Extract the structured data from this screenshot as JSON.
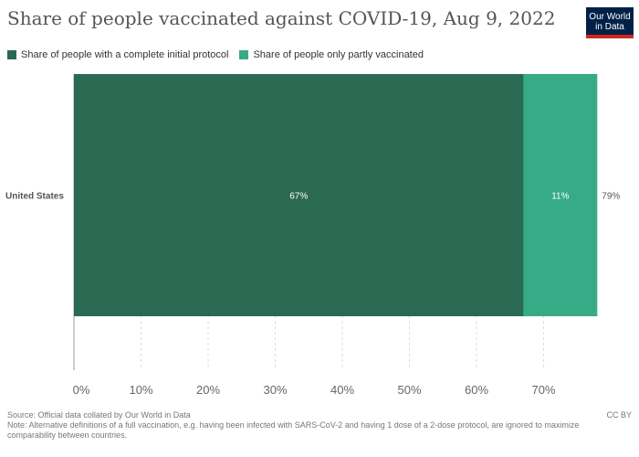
{
  "header": {
    "title": "Share of people vaccinated against COVID-19, Aug 9, 2022",
    "logo_line1": "Our World",
    "logo_line2": "in Data"
  },
  "legend": [
    {
      "label": "Share of people with a complete initial protocol",
      "color": "#2a6a52"
    },
    {
      "label": "Share of people only partly vaccinated",
      "color": "#35ac86"
    }
  ],
  "chart_data": {
    "type": "bar",
    "orientation": "horizontal",
    "stacked": true,
    "categories": [
      "United States"
    ],
    "series": [
      {
        "name": "Share of people with a complete initial protocol",
        "values": [
          67
        ],
        "labels": [
          "67%"
        ],
        "color": "#2a6a52"
      },
      {
        "name": "Share of people only partly vaccinated",
        "values": [
          11
        ],
        "labels": [
          "11%"
        ],
        "color": "#35ac86"
      }
    ],
    "totals": [
      "79%"
    ],
    "xticks": [
      "0%",
      "10%",
      "20%",
      "30%",
      "40%",
      "50%",
      "60%",
      "70%"
    ],
    "xlim": [
      0,
      80
    ],
    "grid": true,
    "legend_position": "top-left"
  },
  "footer": {
    "source": "Source: Official data collated by Our World in Data",
    "license": "CC BY",
    "note": "Note: Alternative definitions of a full vaccination, e.g. having been infected with SARS-CoV-2 and having 1 dose of a 2-dose protocol, are ignored to maximize comparability between countries."
  }
}
